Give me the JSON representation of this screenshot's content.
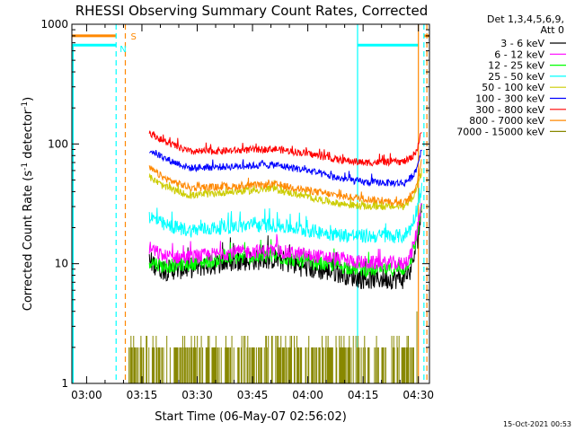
{
  "chart_data": {
    "type": "line",
    "title": "RHESSI Observing Summary Count Rates, Corrected",
    "xlabel": "Start Time (06-May-07 02:56:02)",
    "ylabel_main": "Corrected Count Rate (s",
    "ylabel_sup1": "-1",
    "ylabel_mid": " detector",
    "ylabel_sup2": "-1",
    "ylabel_end": ")",
    "y_scale": "log",
    "ylim": [
      1,
      1000
    ],
    "x_unit": "minutes since 02:56:02",
    "xlim": [
      0,
      97
    ],
    "x_ticks": [
      {
        "label": "03:00",
        "value": 4
      },
      {
        "label": "03:15",
        "value": 19
      },
      {
        "label": "03:30",
        "value": 34
      },
      {
        "label": "03:45",
        "value": 49
      },
      {
        "label": "04:00",
        "value": 64
      },
      {
        "label": "04:15",
        "value": 79
      },
      {
        "label": "04:30",
        "value": 94
      }
    ],
    "y_ticks": [
      {
        "label": "1",
        "value": 1
      },
      {
        "label": "10",
        "value": 10
      },
      {
        "label": "100",
        "value": 100
      },
      {
        "label": "1000",
        "value": 1000
      }
    ],
    "legend_header": [
      "Det 1,3,4,5,6,9,",
      "Att 0"
    ],
    "legend_position": "right",
    "series": [
      {
        "name": "3 - 6 keV",
        "color": "#000000",
        "key": [
          [
            21,
            10.5
          ],
          [
            25,
            8.8
          ],
          [
            32,
            9.2
          ],
          [
            44,
            10.5
          ],
          [
            55,
            11
          ],
          [
            64,
            9.2
          ],
          [
            72,
            8.5
          ],
          [
            79,
            7.5
          ],
          [
            90,
            7.5
          ],
          [
            92,
            9
          ],
          [
            93.5,
            14
          ],
          [
            95,
            30
          ]
        ]
      },
      {
        "name": "6 - 12 keV",
        "color": "#ff00ff",
        "key": [
          [
            21,
            13.5
          ],
          [
            25,
            11.5
          ],
          [
            32,
            11.3
          ],
          [
            44,
            12.5
          ],
          [
            55,
            12.8
          ],
          [
            64,
            11.8
          ],
          [
            72,
            11
          ],
          [
            79,
            10.2
          ],
          [
            90,
            10
          ],
          [
            92,
            12
          ],
          [
            93.5,
            18
          ],
          [
            95,
            35
          ]
        ]
      },
      {
        "name": "12 - 25 keV",
        "color": "#00ff00",
        "key": [
          [
            21,
            10.5
          ],
          [
            25,
            9.5
          ],
          [
            32,
            10
          ],
          [
            44,
            11.2
          ],
          [
            55,
            11.5
          ],
          [
            64,
            10.3
          ],
          [
            72,
            9.6
          ],
          [
            79,
            8.9
          ],
          [
            90,
            9
          ],
          [
            92,
            11
          ],
          [
            93.5,
            16
          ],
          [
            95,
            32
          ]
        ]
      },
      {
        "name": "25 - 50 keV",
        "color": "#00ffff",
        "key": [
          [
            21,
            25
          ],
          [
            25,
            21
          ],
          [
            32,
            19
          ],
          [
            44,
            20.5
          ],
          [
            55,
            21
          ],
          [
            64,
            19
          ],
          [
            72,
            17.5
          ],
          [
            79,
            17
          ],
          [
            90,
            17
          ],
          [
            92,
            20
          ],
          [
            93.5,
            28
          ],
          [
            95,
            45
          ]
        ]
      },
      {
        "name": "50 - 100 keV",
        "color": "#cccc00",
        "key": [
          [
            21,
            53
          ],
          [
            25,
            44
          ],
          [
            32,
            37
          ],
          [
            44,
            40
          ],
          [
            55,
            42
          ],
          [
            64,
            36
          ],
          [
            72,
            32
          ],
          [
            79,
            30
          ],
          [
            90,
            30
          ],
          [
            92,
            34
          ],
          [
            93.5,
            42
          ],
          [
            95,
            60
          ]
        ]
      },
      {
        "name": "100 - 300 keV",
        "color": "#0000ff",
        "key": [
          [
            21,
            90
          ],
          [
            25,
            76
          ],
          [
            32,
            63
          ],
          [
            44,
            65
          ],
          [
            55,
            67
          ],
          [
            64,
            60
          ],
          [
            72,
            52
          ],
          [
            79,
            48
          ],
          [
            90,
            47
          ],
          [
            92,
            52
          ],
          [
            93.5,
            62
          ],
          [
            95,
            95
          ]
        ]
      },
      {
        "name": "300 - 800 keV",
        "color": "#ff0000",
        "key": [
          [
            21,
            125
          ],
          [
            25,
            105
          ],
          [
            32,
            86
          ],
          [
            44,
            88
          ],
          [
            55,
            91
          ],
          [
            64,
            83
          ],
          [
            72,
            74
          ],
          [
            79,
            70
          ],
          [
            90,
            71
          ],
          [
            92,
            76
          ],
          [
            93.5,
            88
          ],
          [
            95,
            130
          ]
        ]
      },
      {
        "name": "800 - 7000 keV",
        "color": "#ff8800",
        "key": [
          [
            21,
            63
          ],
          [
            25,
            52
          ],
          [
            32,
            43
          ],
          [
            44,
            44
          ],
          [
            55,
            46
          ],
          [
            64,
            41
          ],
          [
            72,
            37
          ],
          [
            79,
            35
          ],
          [
            90,
            32
          ],
          [
            92,
            36
          ],
          [
            93.5,
            46
          ],
          [
            95,
            75
          ]
        ]
      },
      {
        "name": "7000 - 15000 keV",
        "color": "#888800",
        "key": []
      }
    ],
    "annotations": [
      {
        "label": "S",
        "color": "#ff8800"
      },
      {
        "label": "N",
        "color": "#00ffff"
      }
    ],
    "attenuator_bar_S": {
      "color": "#ff8800",
      "value": 800,
      "segments": [
        [
          0,
          12
        ],
        [
          95.5,
          97
        ]
      ]
    },
    "night_bar_N": {
      "color": "#00ffff",
      "value": 670,
      "segments": [
        [
          0,
          12
        ],
        [
          77.5,
          94
        ]
      ]
    },
    "vlines": [
      {
        "x": 12,
        "color": "#00ffff",
        "style": "dashed"
      },
      {
        "x": 14.5,
        "color": "#ff8800",
        "style": "dashed"
      },
      {
        "x": 77.5,
        "color": "#00ffff",
        "style": "solid"
      },
      {
        "x": 94,
        "color": "#ff8800",
        "style": "solid"
      },
      {
        "x": 95.5,
        "color": "#00ffff",
        "style": "dashed"
      },
      {
        "x": 96.3,
        "color": "#ff8800",
        "style": "dashed"
      }
    ],
    "high_energy_band": {
      "color": "#888800",
      "x_start": 15.5,
      "x_end": 93,
      "levels": [
        1,
        2,
        2.5
      ]
    },
    "data_start": 21,
    "data_end": 95
  },
  "timestamp": "15-Oct-2021 00:53"
}
